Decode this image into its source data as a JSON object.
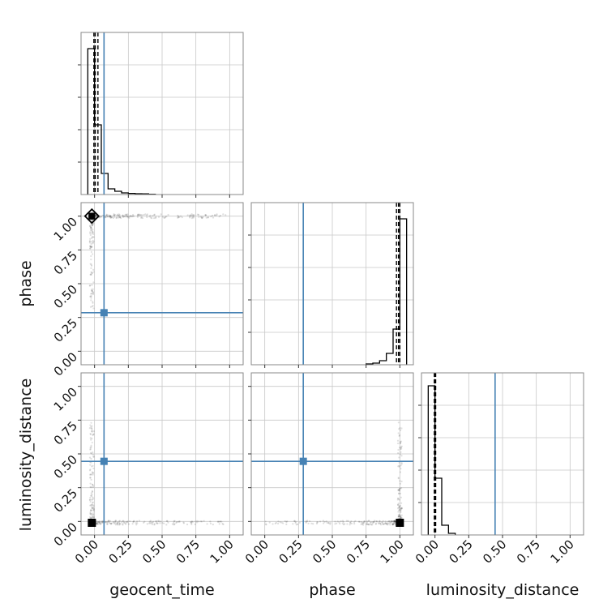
{
  "chart_data": {
    "type": "corner",
    "parameters": [
      "geocent_time",
      "phase",
      "luminosity_distance"
    ],
    "axis_ticks": [
      "0.00",
      "0.25",
      "0.50",
      "0.75",
      "1.00"
    ],
    "axis_range": [
      -0.1,
      1.1
    ],
    "truths": {
      "geocent_time": 0.07,
      "phase": 0.285,
      "luminosity_distance": 0.445
    },
    "colors": {
      "truth": "#4682b4",
      "samples": "#000000",
      "grid": "#c8c8c8"
    },
    "histograms": [
      {
        "parameter": "geocent_time",
        "bin_edges": [
          -0.05,
          0.0,
          0.05,
          0.1,
          0.15,
          0.2,
          0.25,
          0.3,
          0.35,
          0.4,
          0.45
        ],
        "counts": [
          0.9,
          0.43,
          0.13,
          0.035,
          0.02,
          0.01,
          0.007,
          0.005,
          0.004,
          0.002
        ],
        "quantiles": [
          -0.005,
          0.005,
          0.025
        ]
      },
      {
        "parameter": "phase",
        "bin_edges": [
          0.75,
          0.8,
          0.85,
          0.9,
          0.95,
          1.0,
          1.05
        ],
        "counts": [
          0.005,
          0.01,
          0.025,
          0.07,
          0.22,
          0.9
        ],
        "quantiles": [
          0.975,
          0.99,
          1.0
        ]
      },
      {
        "parameter": "luminosity_distance",
        "bin_edges": [
          -0.05,
          0.0,
          0.05,
          0.1,
          0.15
        ],
        "counts": [
          0.92,
          0.35,
          0.06,
          0.01
        ],
        "quantiles": [
          -0.005,
          0.0,
          0.005
        ]
      }
    ],
    "panels_2d": [
      {
        "x": "geocent_time",
        "y": "phase",
        "mode_marker": [
          -0.02,
          1.0
        ],
        "truth": [
          0.07,
          0.285
        ]
      },
      {
        "x": "geocent_time",
        "y": "luminosity_distance",
        "mode_marker": [
          -0.02,
          -0.01
        ],
        "truth": [
          0.07,
          0.445
        ]
      },
      {
        "x": "phase",
        "y": "luminosity_distance",
        "mode_marker": [
          1.0,
          -0.01
        ],
        "truth": [
          0.285,
          0.445
        ]
      }
    ]
  }
}
